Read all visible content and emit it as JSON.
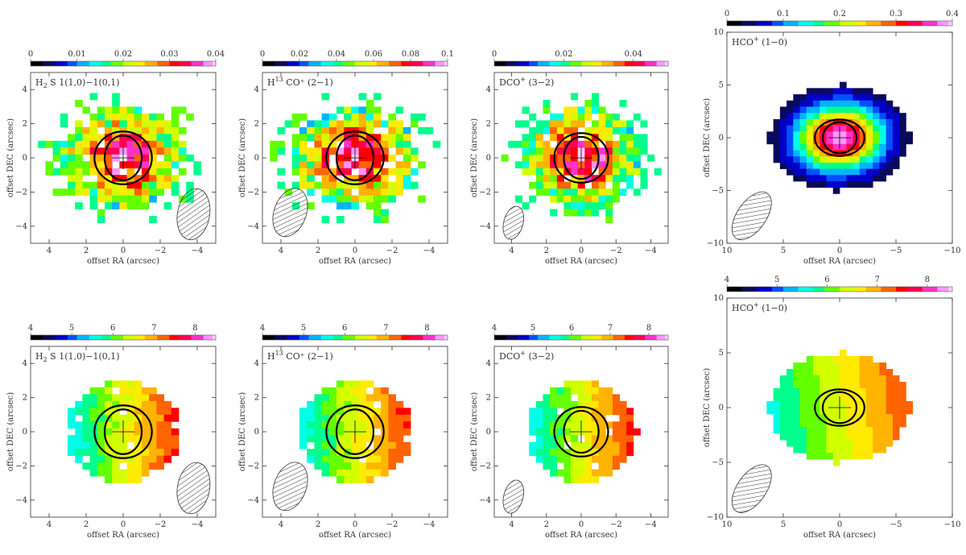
{
  "figure": {
    "ellipse_color": "#000000",
    "colormap": [
      "#000000",
      "#0a0a5a",
      "#0000c8",
      "#0050ff",
      "#00b4ff",
      "#00ffe6",
      "#00ff8c",
      "#64ff00",
      "#d2ff00",
      "#ffeb00",
      "#ffb400",
      "#ff6400",
      "#ff0000",
      "#ff0050",
      "#ff32c8",
      "#ff96ff",
      "#ffd2ff"
    ],
    "panels": [
      {
        "name": "h2s-intensity",
        "species_main": "H",
        "species_sub": "2",
        "species_sup": "",
        "species_rest": "S 1(1,0)−1(0,1)",
        "kind": "intensity",
        "colorbar_ticks": [
          "0",
          "0.01",
          "0.02",
          "0.03",
          "0.04"
        ],
        "colorbar_range": [
          0,
          0.04
        ],
        "x_label": "offset RA (arcsec)",
        "y_label": "offset DEC (arcsec)",
        "x_ticks": [
          "4",
          "2",
          "0",
          "−2",
          "−4"
        ],
        "y_ticks": [
          "4",
          "2",
          "0",
          "−2",
          "−4"
        ],
        "axis_range": [
          5,
          -5
        ]
      },
      {
        "name": "h13co-intensity",
        "species_main": "H",
        "species_sub": "",
        "species_sup": "13",
        "species_rest": "CO⁺ (2−1)",
        "kind": "intensity",
        "colorbar_ticks": [
          "0",
          "0.02",
          "0.04",
          "0.06",
          "0.08",
          "0.1"
        ],
        "colorbar_range": [
          0,
          0.1
        ],
        "x_label": "offset RA (arcsec)",
        "y_label": "offset DEC (arcsec)",
        "x_ticks": [
          "4",
          "2",
          "0",
          "−2",
          "−4"
        ],
        "y_ticks": [
          "4",
          "2",
          "0",
          "−2",
          "−4"
        ],
        "axis_range": [
          5,
          -5
        ]
      },
      {
        "name": "dco-intensity",
        "species_main": "DCO",
        "species_sub": "",
        "species_sup": "+",
        "species_rest": "(3−2)",
        "kind": "intensity",
        "colorbar_ticks": [
          "0",
          "0.02",
          "0.04"
        ],
        "colorbar_range": [
          0,
          0.05
        ],
        "x_label": "offset RA (arcsec)",
        "y_label": "offset DEC (arcsec)",
        "x_ticks": [
          "4",
          "2",
          "0",
          "−2",
          "−4"
        ],
        "y_ticks": [
          "4",
          "2",
          "0",
          "−2",
          "−4"
        ],
        "axis_range": [
          5,
          -5
        ]
      },
      {
        "name": "hco-intensity",
        "species_main": "HCO",
        "species_sub": "",
        "species_sup": "+",
        "species_rest": " (1−0)",
        "kind": "intensity",
        "colorbar_ticks": [
          "0",
          "0.1",
          "0.2",
          "0.3",
          "0.4"
        ],
        "colorbar_range": [
          0,
          0.4
        ],
        "x_label": "offset RA (arcsec)",
        "y_label": "offset DEC (arcsec)",
        "x_ticks": [
          "10",
          "5",
          "0",
          "−5",
          "−10"
        ],
        "y_ticks": [
          "10",
          "5",
          "0",
          "−5",
          "−10"
        ],
        "axis_range": [
          10,
          -10
        ]
      },
      {
        "name": "h2s-velocity",
        "species_main": "H",
        "species_sub": "2",
        "species_sup": "",
        "species_rest": "S 1(1,0)−1(0,1)",
        "kind": "velocity",
        "colorbar_ticks": [
          "4",
          "5",
          "6",
          "7",
          "8"
        ],
        "colorbar_range": [
          4,
          8.5
        ],
        "x_label": "offset RA (arcsec)",
        "y_label": "offset DEC (arcsec)",
        "x_ticks": [
          "4",
          "2",
          "0",
          "−2",
          "−4"
        ],
        "y_ticks": [
          "4",
          "2",
          "0",
          "−2",
          "−4"
        ],
        "axis_range": [
          5,
          -5
        ]
      },
      {
        "name": "h13co-velocity",
        "species_main": "H",
        "species_sub": "",
        "species_sup": "13",
        "species_rest": "CO⁺ (2−1)",
        "kind": "velocity",
        "colorbar_ticks": [
          "4",
          "5",
          "6",
          "7",
          "8"
        ],
        "colorbar_range": [
          4,
          8.5
        ],
        "x_label": "offset RA (arcsec)",
        "y_label": "offset DEC (arcsec)",
        "x_ticks": [
          "4",
          "2",
          "0",
          "−2",
          "−4"
        ],
        "y_ticks": [
          "4",
          "2",
          "0",
          "−2",
          "−4"
        ],
        "axis_range": [
          5,
          -5
        ]
      },
      {
        "name": "dco-velocity",
        "species_main": "DCO",
        "species_sub": "",
        "species_sup": "+",
        "species_rest": "(3−2)",
        "kind": "velocity",
        "colorbar_ticks": [
          "4",
          "5",
          "6",
          "7",
          "8"
        ],
        "colorbar_range": [
          4,
          8.5
        ],
        "x_label": "offset RA (arcsec)",
        "y_label": "offset DEC (arcsec)",
        "x_ticks": [
          "4",
          "2",
          "0",
          "−2",
          "−4"
        ],
        "y_ticks": [
          "4",
          "2",
          "0",
          "−2",
          "−4"
        ],
        "axis_range": [
          5,
          -5
        ]
      },
      {
        "name": "hco-velocity",
        "species_main": "HCO",
        "species_sub": "",
        "species_sup": "+",
        "species_rest": " (1−0)",
        "kind": "velocity",
        "colorbar_ticks": [
          "4",
          "5",
          "6",
          "7",
          "8"
        ],
        "colorbar_range": [
          4,
          8.5
        ],
        "x_label": "offset RA (arcsec)",
        "y_label": "offset DEC (arcsec)",
        "x_ticks": [
          "10",
          "5",
          "0",
          "−5",
          "−10"
        ],
        "y_ticks": [
          "10",
          "5",
          "0",
          "−5",
          "−10"
        ],
        "axis_range": [
          10,
          -10
        ]
      }
    ]
  }
}
